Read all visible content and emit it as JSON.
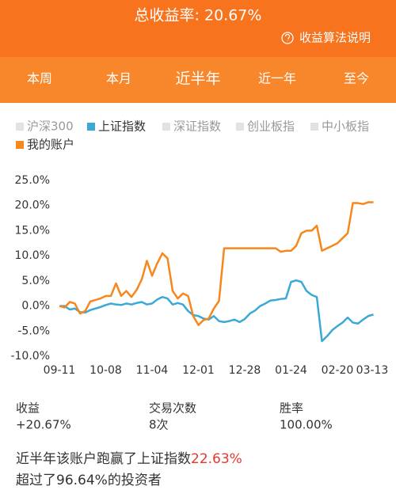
{
  "header": {
    "title": "总收益率: 20.67%",
    "help": "收益算法说明"
  },
  "tabs": {
    "items": [
      "本周",
      "本月",
      "近半年",
      "近一年",
      "至今"
    ],
    "selected": 2
  },
  "chart_data": {
    "type": "line",
    "series": [
      {
        "name": "沪深300",
        "color": "#e2e2e2",
        "visible": false
      },
      {
        "name": "上证指数",
        "color": "#3aa9d6",
        "visible": true,
        "values": [
          0,
          0,
          -0.7,
          -0.5,
          -1.2,
          -1.3,
          -0.8,
          -0.5,
          -0.2,
          0.2,
          0.5,
          0.3,
          0.2,
          0.5,
          0.3,
          0.6,
          0.8,
          0.3,
          0.5,
          1.3,
          1.8,
          1.5,
          0.3,
          0.6,
          0.3,
          -1.0,
          -1.8,
          -2.0,
          -2.5,
          -2.7,
          -2.0,
          -3.0,
          -3.2,
          -3.0,
          -2.7,
          -3.2,
          -2.6,
          -1.5,
          -0.9,
          0.0,
          0.5,
          1.1,
          1.2,
          1.4,
          1.5,
          4.8,
          5.1,
          4.8,
          3.0,
          2.2,
          1.8,
          -7.0,
          -6.0,
          -4.8,
          -4.0,
          -3.3,
          -2.3,
          -3.3,
          -3.5,
          -2.7,
          -2.0,
          -1.7
        ]
      },
      {
        "name": "深证指数",
        "color": "#e2e2e2",
        "visible": false
      },
      {
        "name": "创业板指",
        "color": "#e2e2e2",
        "visible": false
      },
      {
        "name": "中小板指",
        "color": "#e2e2e2",
        "visible": false
      },
      {
        "name": "我的账户",
        "color": "#f7861c",
        "visible": true,
        "values": [
          0,
          -0.3,
          0.8,
          0.5,
          -1.5,
          -1.0,
          0.9,
          1.2,
          1.5,
          2.0,
          2.0,
          4.5,
          2.0,
          3.0,
          1.8,
          3.2,
          5.3,
          9.0,
          6.0,
          8.5,
          10.5,
          9.5,
          3.0,
          1.5,
          2.5,
          2.0,
          -2.0,
          -3.8,
          -2.8,
          -2.5,
          -0.5,
          1.0,
          11.5,
          11.5,
          11.5,
          11.5,
          11.5,
          11.5,
          11.5,
          11.5,
          11.5,
          11.5,
          11.5,
          10.8,
          11.0,
          11.0,
          12.0,
          14.5,
          15.0,
          15.0,
          16.0,
          11.0,
          11.5,
          12.0,
          12.5,
          13.5,
          14.5,
          20.5,
          20.5,
          20.3,
          20.67,
          20.67
        ]
      }
    ],
    "x": [
      0,
      3,
      6,
      9,
      12,
      15,
      18,
      21,
      24,
      27,
      30,
      33,
      36,
      39,
      42,
      45,
      48,
      51,
      54,
      57,
      60,
      63,
      66,
      69,
      72,
      75,
      78,
      81,
      84,
      87,
      90,
      93,
      96,
      99,
      102,
      105,
      108,
      111,
      114,
      117,
      120,
      123,
      126,
      129,
      132,
      135,
      138,
      141,
      144,
      147,
      150,
      153,
      156,
      159,
      162,
      165,
      168,
      171,
      174,
      177,
      180,
      183
    ],
    "xlim": [
      0,
      183
    ],
    "xticks": [
      {
        "value": 0,
        "label": "09-11"
      },
      {
        "value": 27,
        "label": "10-08"
      },
      {
        "value": 54,
        "label": "11-04"
      },
      {
        "value": 81,
        "label": "12-01"
      },
      {
        "value": 108,
        "label": "12-28"
      },
      {
        "value": 135,
        "label": "01-24"
      },
      {
        "value": 162,
        "label": "02-20"
      },
      {
        "value": 183,
        "label": "03-13"
      }
    ],
    "ylim": [
      -10,
      25
    ],
    "yticks": [
      {
        "value": 25,
        "label": "25.0%"
      },
      {
        "value": 20,
        "label": "20.0%"
      },
      {
        "value": 15,
        "label": "15.0%"
      },
      {
        "value": 10,
        "label": "10.0%"
      },
      {
        "value": 5,
        "label": "5.0%"
      },
      {
        "value": 0,
        "label": "0.0%"
      },
      {
        "value": -5,
        "label": "-5.0%"
      },
      {
        "value": -10,
        "label": "-10.0%"
      }
    ],
    "grid": false
  },
  "stats": [
    {
      "label": "收益",
      "value": "+20.67%"
    },
    {
      "label": "交易次数",
      "value": "8次"
    },
    {
      "label": "胜率",
      "value": "100.00%"
    }
  ],
  "summary": {
    "line1": "近半年该账户跑赢了上证指数",
    "highlight": "22.63%",
    "line2": "超过了96.64%的投资者"
  }
}
